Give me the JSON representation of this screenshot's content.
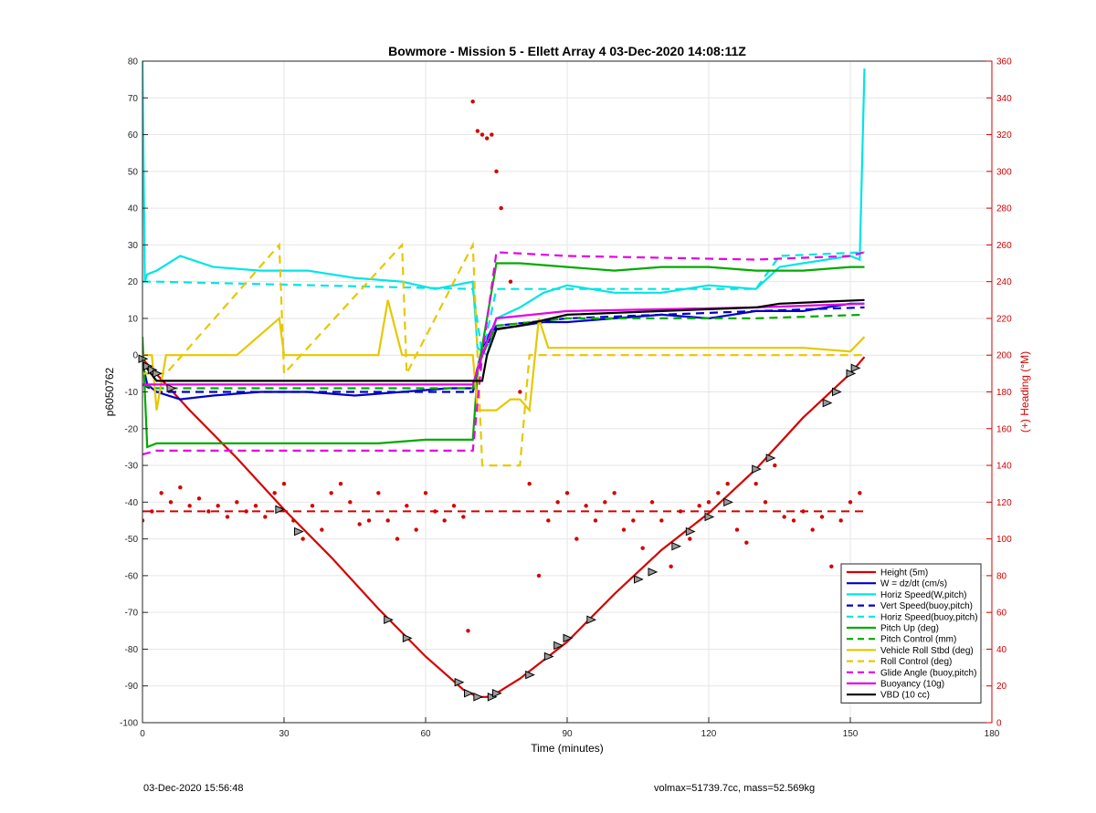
{
  "chart_data": {
    "type": "line",
    "title": "Bowmore - Mission 5 - Ellett Array 4 03-Dec-2020 14:08:11Z",
    "xlabel": "Time (minutes)",
    "ylabel_left": "p6050762",
    "ylabel_right": "(+) Heading (°M)",
    "xlim": [
      0,
      180
    ],
    "ylim_left": [
      -100,
      80
    ],
    "ylim_right": [
      0,
      360
    ],
    "x_ticks": [
      0,
      30,
      60,
      90,
      120,
      150,
      180
    ],
    "y_ticks_left": [
      -100,
      -90,
      -80,
      -70,
      -60,
      -50,
      -40,
      -30,
      -20,
      -10,
      0,
      10,
      20,
      30,
      40,
      50,
      60,
      70,
      80
    ],
    "y_ticks_right": [
      0,
      20,
      40,
      60,
      80,
      100,
      120,
      140,
      160,
      180,
      200,
      220,
      240,
      260,
      280,
      300,
      320,
      340,
      360
    ],
    "grid": true,
    "legend_position": "bottom-right",
    "series": [
      {
        "name": "Height (5m)",
        "color": "#d40000",
        "style": "solid",
        "x": [
          0,
          5,
          10,
          20,
          30,
          40,
          50,
          60,
          68,
          71,
          73,
          75,
          80,
          90,
          100,
          110,
          120,
          130,
          140,
          150,
          153
        ],
        "values": [
          -1,
          -8,
          -15,
          -28,
          -42,
          -55,
          -69,
          -82,
          -91,
          -93,
          -93,
          -92,
          -88,
          -78,
          -65,
          -53,
          -43,
          -31,
          -17,
          -5,
          -0.5
        ]
      },
      {
        "name": "W = dz/dt (cm/s)",
        "color": "#0000c8",
        "style": "solid",
        "x": [
          0,
          1,
          3,
          8,
          15,
          25,
          35,
          45,
          55,
          65,
          70,
          72,
          74,
          80,
          85,
          90,
          100,
          110,
          120,
          130,
          140,
          150,
          153
        ],
        "values": [
          -2,
          -8,
          -10,
          -12,
          -11,
          -10,
          -10,
          -11,
          -10,
          -9,
          -9,
          2,
          7,
          8,
          9,
          9,
          10,
          11,
          10,
          12,
          12,
          14,
          14
        ]
      },
      {
        "name": "Horiz Speed(W,pitch)",
        "color": "#00e5e5",
        "style": "solid",
        "x": [
          0,
          0.5,
          1,
          3,
          8,
          15,
          25,
          35,
          45,
          55,
          62,
          70,
          71,
          73,
          75,
          80,
          85,
          90,
          100,
          110,
          120,
          130,
          135,
          140,
          150,
          152,
          153
        ],
        "values": [
          80,
          20,
          22,
          23,
          27,
          24,
          23,
          23,
          21,
          20,
          18,
          20,
          2,
          0,
          10,
          13,
          17,
          19,
          17,
          17,
          19,
          18,
          24,
          25,
          27,
          26,
          78
        ]
      },
      {
        "name": "Vert Speed(buoy,pitch)",
        "color": "#0000c8",
        "style": "dashed",
        "x": [
          0,
          3,
          70,
          72,
          75,
          90,
          130,
          153
        ],
        "values": [
          -8,
          -10,
          -10,
          0,
          8,
          10,
          12,
          13
        ]
      },
      {
        "name": "Horiz Speed(buoy,pitch)",
        "color": "#00e5e5",
        "style": "dashed",
        "x": [
          0,
          3,
          70,
          72,
          75,
          90,
          130,
          135,
          153
        ],
        "values": [
          20,
          20,
          18,
          0,
          18,
          18,
          18,
          27,
          28
        ]
      },
      {
        "name": "Pitch Up (deg)",
        "color": "#00aa00",
        "style": "solid",
        "x": [
          0,
          1,
          3,
          10,
          30,
          50,
          60,
          70,
          71,
          73,
          75,
          80,
          90,
          100,
          110,
          120,
          130,
          140,
          150,
          153
        ],
        "values": [
          5,
          -25,
          -24,
          -24,
          -24,
          -24,
          -23,
          -23,
          -5,
          10,
          25,
          25,
          24,
          23,
          24,
          24,
          23,
          23,
          24,
          24
        ]
      },
      {
        "name": "Pitch Control (mm)",
        "color": "#00aa00",
        "style": "dashed",
        "x": [
          0,
          3,
          70,
          72,
          75,
          90,
          130,
          153
        ],
        "values": [
          -8,
          -9,
          -9,
          0,
          8,
          10,
          10,
          11
        ]
      },
      {
        "name": "Vehicle Roll Stbd (deg)",
        "color": "#e6c800",
        "style": "solid",
        "x": [
          0,
          2,
          3,
          5,
          10,
          20,
          29,
          30,
          40,
          50,
          52,
          55,
          60,
          70,
          71,
          75,
          78,
          80,
          82,
          84,
          86,
          90,
          100,
          110,
          120,
          130,
          140,
          150,
          153
        ],
        "values": [
          0,
          0,
          -15,
          0,
          0,
          0,
          10,
          0,
          0,
          0,
          15,
          0,
          0,
          0,
          -15,
          -15,
          -12,
          -12,
          -15,
          10,
          2,
          2,
          2,
          2,
          2,
          2,
          2,
          1,
          5
        ]
      },
      {
        "name": "Roll Control (deg)",
        "color": "#e6c800",
        "style": "dashed",
        "x": [
          0,
          5,
          29,
          30,
          55,
          56,
          70,
          72,
          75,
          80,
          82,
          90,
          100,
          120,
          150,
          153
        ],
        "values": [
          -5,
          -5,
          30,
          -5,
          30,
          -5,
          30,
          -30,
          -30,
          -30,
          0,
          0,
          0,
          0,
          0,
          0
        ]
      },
      {
        "name": "Glide Angle (buoy,pitch)",
        "color": "#e600e6",
        "style": "dashed",
        "x": [
          0,
          3,
          70,
          72,
          75,
          90,
          130,
          150,
          153
        ],
        "values": [
          -27,
          -26,
          -26,
          0,
          28,
          27,
          26,
          27,
          28
        ]
      },
      {
        "name": "Buoyancy (10g)",
        "color": "#e600e6",
        "style": "solid",
        "x": [
          0,
          3,
          70,
          72,
          75,
          90,
          130,
          153
        ],
        "values": [
          -8,
          -8,
          -8,
          0,
          10,
          12,
          13,
          14
        ]
      },
      {
        "name": "VBD (10 cc)",
        "color": "#000000",
        "style": "solid",
        "x": [
          0,
          3,
          72,
          73,
          75,
          80,
          90,
          110,
          130,
          135,
          153
        ],
        "values": [
          -2,
          -7,
          -7,
          0,
          7,
          8,
          11,
          12,
          13,
          14,
          15
        ]
      }
    ],
    "heading": {
      "color": "#d40000",
      "axis": "right",
      "x": [
        0,
        2,
        4,
        6,
        8,
        10,
        12,
        14,
        16,
        18,
        20,
        22,
        24,
        26,
        28,
        30,
        32,
        34,
        36,
        38,
        40,
        42,
        44,
        46,
        48,
        50,
        52,
        54,
        56,
        58,
        60,
        62,
        64,
        66,
        68,
        69,
        70,
        71,
        72,
        73,
        74,
        75,
        76,
        78,
        80,
        82,
        84,
        86,
        88,
        90,
        92,
        94,
        96,
        98,
        100,
        102,
        104,
        106,
        108,
        110,
        112,
        114,
        116,
        118,
        120,
        122,
        124,
        126,
        128,
        130,
        132,
        134,
        136,
        138,
        140,
        142,
        144,
        146,
        148,
        150,
        152
      ],
      "values": [
        110,
        115,
        125,
        120,
        128,
        118,
        122,
        115,
        118,
        112,
        120,
        115,
        118,
        112,
        125,
        130,
        110,
        100,
        118,
        105,
        125,
        130,
        120,
        108,
        110,
        125,
        110,
        100,
        118,
        105,
        125,
        115,
        110,
        118,
        112,
        50,
        338,
        322,
        320,
        318,
        320,
        300,
        280,
        240,
        180,
        130,
        80,
        110,
        120,
        125,
        100,
        118,
        110,
        120,
        125,
        105,
        110,
        95,
        120,
        110,
        85,
        115,
        100,
        118,
        120,
        125,
        130,
        105,
        98,
        130,
        120,
        140,
        112,
        110,
        115,
        105,
        112,
        85,
        110,
        120,
        125
      ]
    },
    "markers": {
      "x": [
        0,
        1,
        2,
        3,
        6,
        29,
        33,
        52,
        56,
        67,
        69,
        71,
        74,
        75,
        82,
        86,
        88,
        90,
        95,
        105,
        108,
        113,
        116,
        120,
        124,
        130,
        133,
        145,
        147,
        150,
        151
      ],
      "y": [
        -1,
        -3,
        -4,
        -5,
        -9,
        -42,
        -48,
        -72,
        -77,
        -89,
        -92,
        -93,
        -93,
        -92,
        -87,
        -82,
        -79,
        -77,
        -72,
        -61,
        -59,
        -52,
        -48,
        -44,
        -40,
        -31,
        -28,
        -13,
        -10,
        -5,
        -3.5
      ]
    }
  },
  "footer": {
    "left": "03-Dec-2020 15:56:48",
    "right": "volmax=51739.7cc, mass=52.569kg"
  }
}
